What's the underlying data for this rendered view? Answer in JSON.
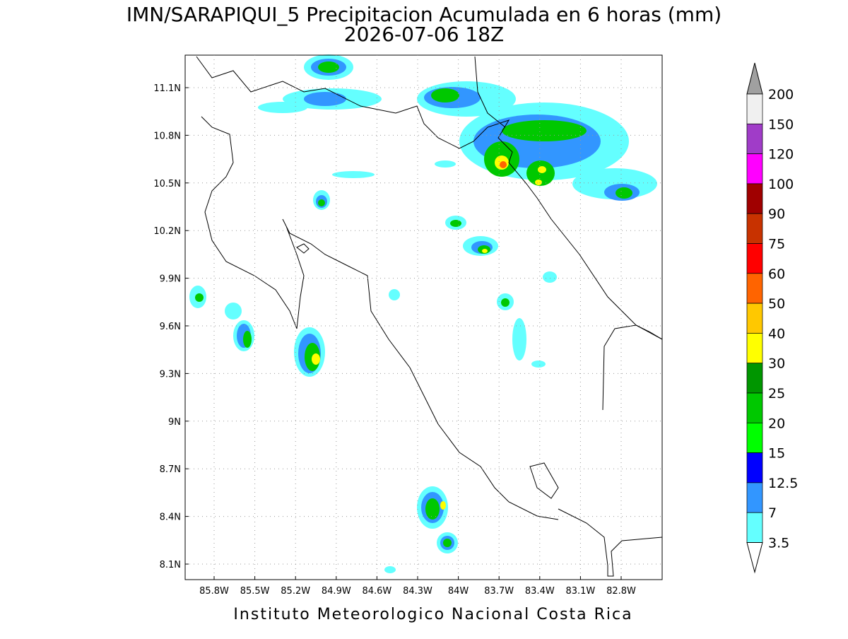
{
  "map": {
    "title": "IMN/SARAPIQUI_5 Precipitacion Acumulada en 6 horas (mm)",
    "subtitle": "2026-07-06 18Z",
    "lat_labels": [
      "11.1N",
      "10.8N",
      "10.5N",
      "10.2N",
      "9.9N",
      "9.6N",
      "9.3N",
      "9N",
      "8.7N",
      "8.4N",
      "8.1N"
    ],
    "lon_labels": [
      "85.8W",
      "85.5W",
      "85.2W",
      "84.9W",
      "84.6W",
      "84.3W",
      "84W",
      "83.7W",
      "83.4W",
      "83.1W",
      "82.8W"
    ],
    "footer": "Instituto Meteorologico Nacional Costa Rica",
    "colorbar": {
      "levels": [
        200,
        150,
        120,
        100,
        90,
        75,
        60,
        50,
        40,
        30,
        25,
        20,
        15,
        12.5,
        7,
        3.5
      ],
      "colors": [
        "#f0f0f0",
        "#a03cc8",
        "#ff00ff",
        "#a00000",
        "#c83200",
        "#ff0000",
        "#ff6400",
        "#ffc800",
        "#ffff00",
        "#009600",
        "#00c800",
        "#00ff00",
        "#0000ff",
        "#3296ff",
        "#64ffff"
      ],
      "over_color": "#a0a0a0",
      "under_color": "#ffffff"
    }
  }
}
